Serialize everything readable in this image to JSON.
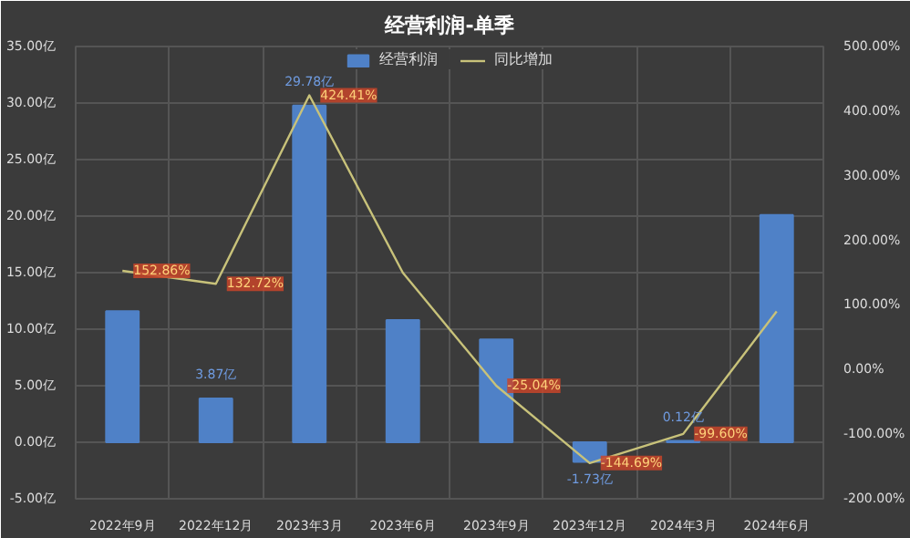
{
  "chart_data": {
    "type": "bar",
    "title": "经营利润-单季",
    "categories": [
      "2022年9月",
      "2022年12月",
      "2023年3月",
      "2023年6月",
      "2023年9月",
      "2023年12月",
      "2024年3月",
      "2024年6月"
    ],
    "series": [
      {
        "name": "经营利润",
        "color": "#4f81c7",
        "values": [
          11.6,
          3.87,
          29.78,
          10.8,
          9.1,
          -1.73,
          0.12,
          20.1
        ],
        "value_labels": [
          null,
          "3.87亿",
          "29.78亿",
          null,
          null,
          "-1.73亿",
          "0.12亿",
          null
        ]
      },
      {
        "name": "同比增加",
        "type": "line",
        "axis": "y2",
        "color": "#c8c27a",
        "values": [
          152.86,
          132.72,
          424.41,
          150,
          -25.04,
          -144.69,
          -99.6,
          90
        ],
        "value_labels": [
          "152.86%",
          "132.72%",
          "424.41%",
          null,
          "-25.04%",
          "-144.69%",
          "-99.60%",
          null
        ]
      }
    ],
    "ylim": [
      -5,
      35
    ],
    "yticks": [
      {
        "value": -5,
        "label": "-5.00亿"
      },
      {
        "value": 0,
        "label": "0.00亿"
      },
      {
        "value": 5,
        "label": "5.00亿"
      },
      {
        "value": 10,
        "label": "10.00亿"
      },
      {
        "value": 15,
        "label": "15.00亿"
      },
      {
        "value": 20,
        "label": "20.00亿"
      },
      {
        "value": 25,
        "label": "25.00亿"
      },
      {
        "value": 30,
        "label": "30.00亿"
      },
      {
        "value": 35,
        "label": "35.00亿"
      }
    ],
    "y2lim": [
      -200,
      500
    ],
    "y2ticks": [
      {
        "value": -200,
        "label": "-200.00%"
      },
      {
        "value": -100,
        "label": "-100.00%"
      },
      {
        "value": 0,
        "label": "0.00%"
      },
      {
        "value": 100,
        "label": "100.00%"
      },
      {
        "value": 200,
        "label": "200.00%"
      },
      {
        "value": 300,
        "label": "300.00%"
      },
      {
        "value": 400,
        "label": "400.00%"
      },
      {
        "value": 500,
        "label": "500.00%"
      }
    ],
    "grid": true,
    "legend": "top"
  }
}
